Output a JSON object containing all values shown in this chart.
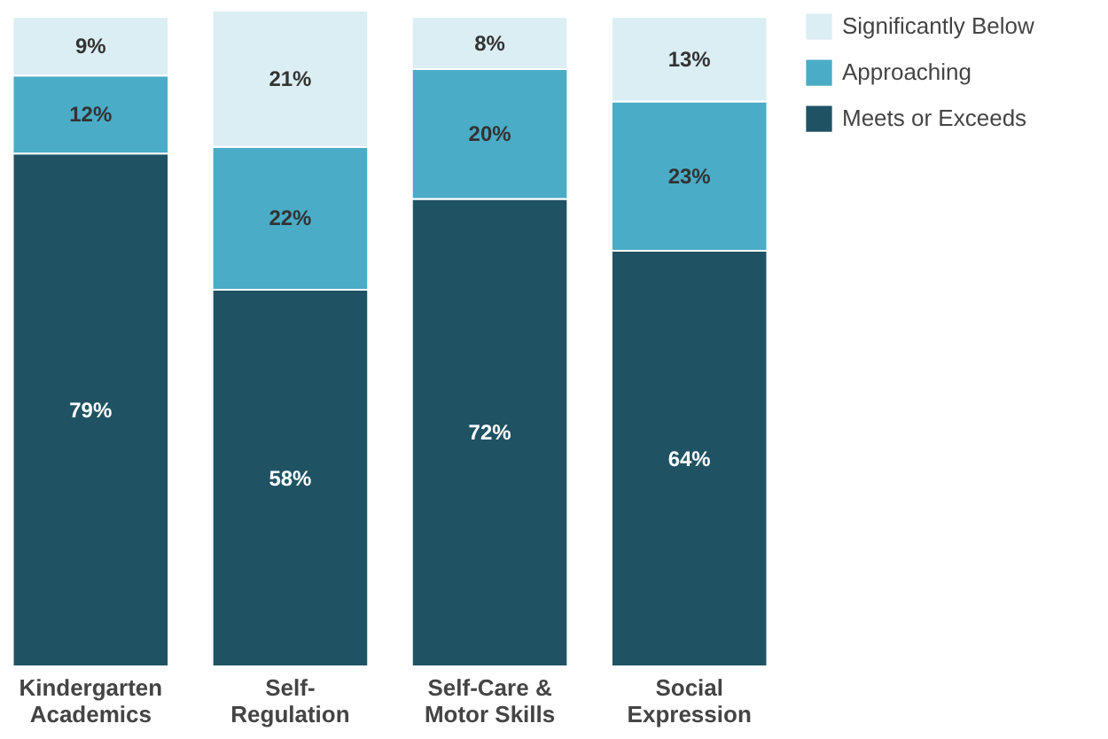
{
  "chart_data": {
    "type": "bar",
    "stacked": true,
    "legend": "top right",
    "grid": false,
    "categories": [
      "Kindergarten\nAcademics",
      "Self-\nRegulation",
      "Self-Care &\nMotor Skills",
      "Social\nExpression"
    ],
    "series": [
      {
        "name": "Meets or Exceeds",
        "color": "#1f5364",
        "values": [
          79,
          58,
          72,
          64
        ],
        "value_labels": [
          "79%",
          "58%",
          "72%",
          "64%"
        ]
      },
      {
        "name": "Approaching",
        "color": "#4aacc6",
        "values": [
          12,
          22,
          20,
          23
        ],
        "value_labels": [
          "12%",
          "22%",
          "20%",
          "23%"
        ]
      },
      {
        "name": "Significantly Below",
        "color": "#dbeef4",
        "values": [
          9,
          21,
          8,
          13
        ],
        "value_labels": [
          "9%",
          "21%",
          "8%",
          "13%"
        ]
      }
    ]
  }
}
